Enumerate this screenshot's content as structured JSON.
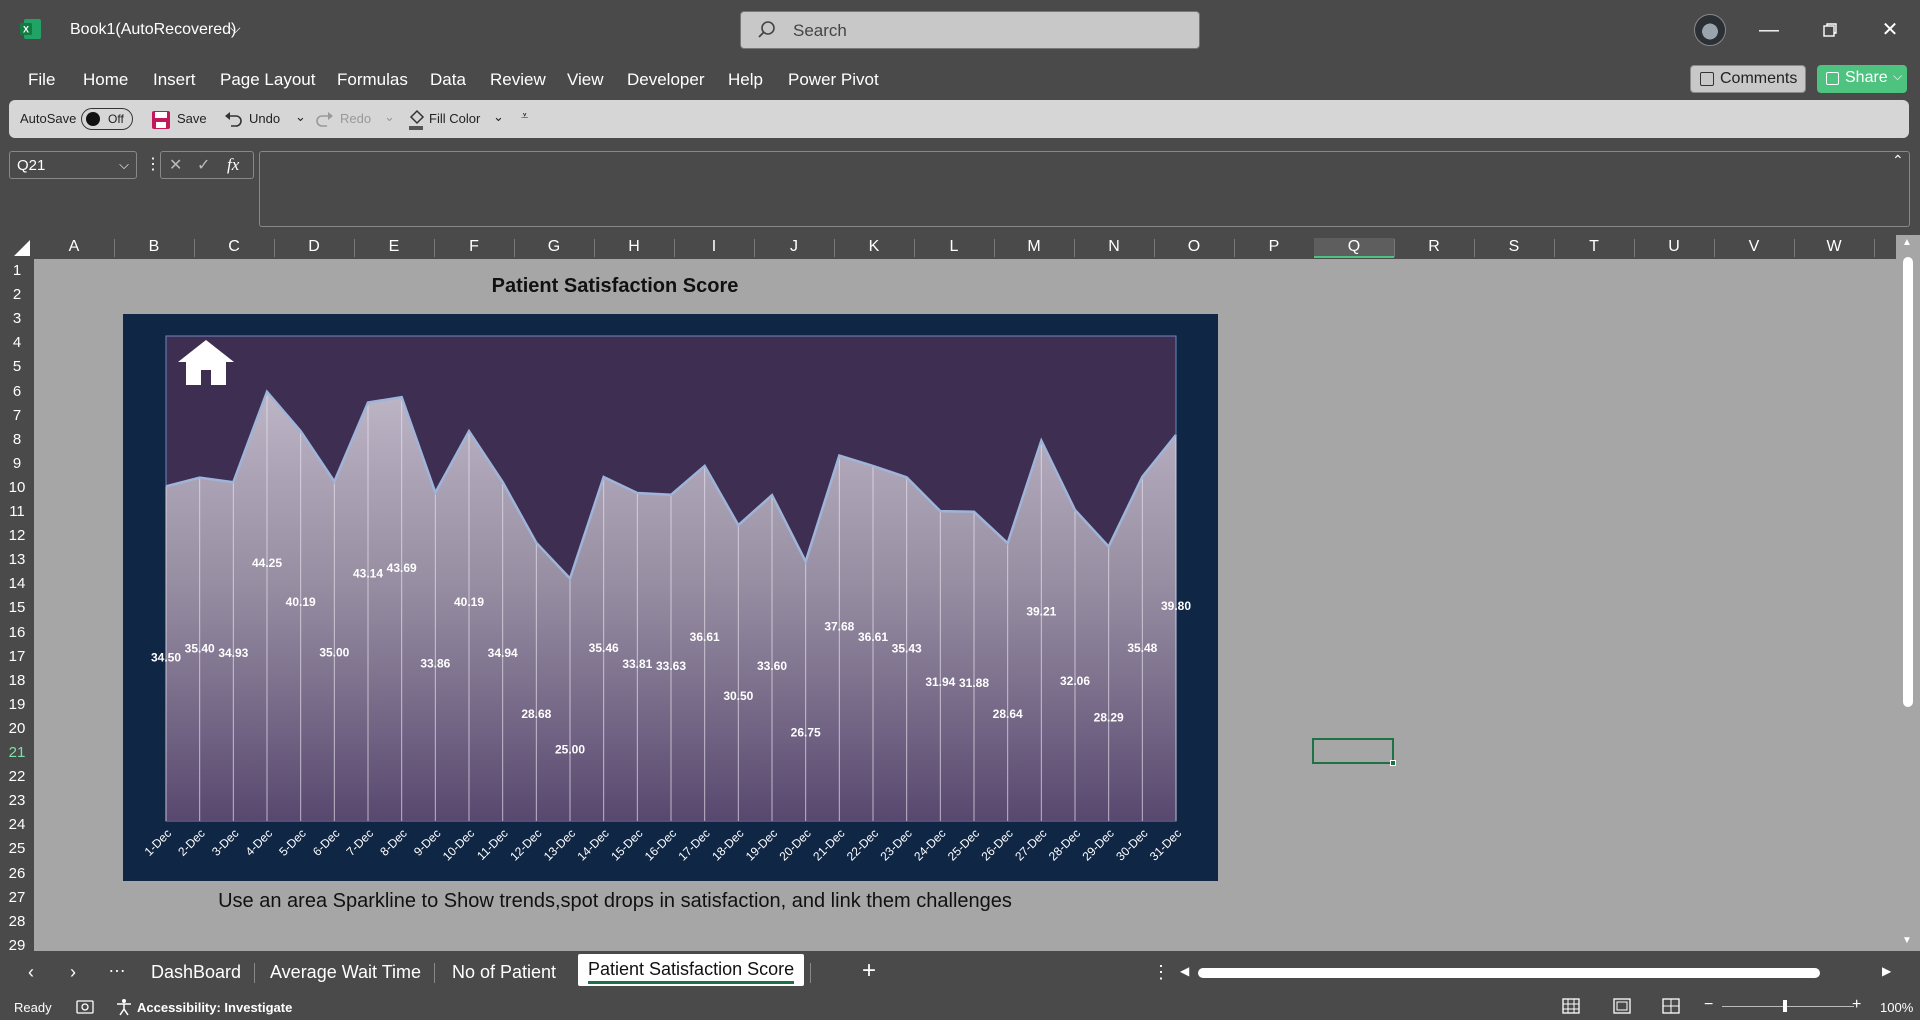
{
  "window": {
    "title": "Book1(AutoRecovered)",
    "search_placeholder": "Search",
    "minimize_icon": "minimize-icon",
    "restore_icon": "restore-icon",
    "close_icon": "close-icon"
  },
  "menu": {
    "items": [
      "File",
      "Home",
      "Insert",
      "Page Layout",
      "Formulas",
      "Data",
      "Review",
      "View",
      "Developer",
      "Help",
      "Power Pivot"
    ],
    "comments_label": "Comments",
    "share_label": "Share"
  },
  "quick_access": {
    "autosave_label": "AutoSave",
    "autosave_state": "Off",
    "save_label": "Save",
    "undo_label": "Undo",
    "redo_label": "Redo",
    "fill_color_label": "Fill Color"
  },
  "formula_bar": {
    "name_box": "Q21",
    "fx_label": "fx",
    "formula": ""
  },
  "grid": {
    "columns": [
      "A",
      "B",
      "C",
      "D",
      "E",
      "F",
      "G",
      "H",
      "I",
      "J",
      "K",
      "L",
      "M",
      "N",
      "O",
      "P",
      "Q",
      "R",
      "S",
      "T",
      "U",
      "V",
      "W"
    ],
    "rows": [
      "1",
      "2",
      "3",
      "4",
      "5",
      "6",
      "7",
      "8",
      "9",
      "10",
      "11",
      "12",
      "13",
      "14",
      "15",
      "16",
      "17",
      "18",
      "19",
      "20",
      "21",
      "22",
      "23",
      "24",
      "25",
      "26",
      "27",
      "28",
      "29"
    ],
    "selected_cell": "Q21"
  },
  "chart_data": {
    "type": "area",
    "title": "Patient Satisfaction Score",
    "categories": [
      "1-Dec",
      "2-Dec",
      "3-Dec",
      "4-Dec",
      "5-Dec",
      "6-Dec",
      "7-Dec",
      "8-Dec",
      "9-Dec",
      "10-Dec",
      "11-Dec",
      "12-Dec",
      "13-Dec",
      "14-Dec",
      "15-Dec",
      "16-Dec",
      "17-Dec",
      "18-Dec",
      "19-Dec",
      "20-Dec",
      "21-Dec",
      "22-Dec",
      "23-Dec",
      "24-Dec",
      "25-Dec",
      "26-Dec",
      "27-Dec",
      "28-Dec",
      "29-Dec",
      "30-Dec",
      "31-Dec"
    ],
    "values": [
      34.5,
      35.4,
      34.93,
      44.25,
      40.19,
      35.0,
      43.14,
      43.69,
      33.86,
      40.19,
      34.94,
      28.68,
      25.0,
      35.46,
      33.81,
      33.63,
      36.61,
      30.5,
      33.6,
      26.75,
      37.68,
      36.61,
      35.43,
      31.94,
      31.88,
      28.64,
      39.21,
      32.06,
      28.29,
      35.48,
      39.8
    ],
    "labels": [
      "34.50",
      "35.40",
      "34.93",
      "44.25",
      "40.19",
      "35.00",
      "43.14",
      "43.69",
      "33.86",
      "40.19",
      "34.94",
      "28.68",
      "25.00",
      "35.46",
      "33.81",
      "33.63",
      "36.61",
      "30.50",
      "33.60",
      "26.75",
      "37.68",
      "36.61",
      "35.43",
      "31.94",
      "31.88",
      "28.64",
      "39.21",
      "32.06",
      "28.29",
      "35.48",
      "39.80"
    ],
    "caption": "Use an area Sparkline to Show trends,spot drops in satisfaction, and link  them challenges",
    "colors": {
      "frame": "#0f2645",
      "plot": "#3e2f52",
      "line": "#9fb4d8"
    },
    "home_icon": "home-icon"
  },
  "sheets": {
    "tabs": [
      "DashBoard",
      "Average Wait Time",
      "No of Patient"
    ],
    "active": "Patient  Satisfaction Score",
    "add_icon": "plus-icon"
  },
  "status": {
    "ready": "Ready",
    "accessibility": "Accessibility: Investigate",
    "zoom": "100%"
  }
}
